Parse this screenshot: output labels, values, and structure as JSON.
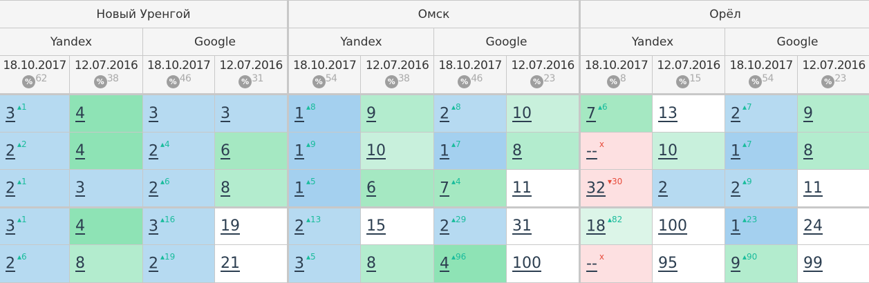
{
  "cities": [
    "Новый Уренгой",
    "Омск",
    "Орёл"
  ],
  "engines": [
    "Yandex",
    "Google",
    "Yandex",
    "Google",
    "Yandex",
    "Google"
  ],
  "columns": [
    {
      "date": "18.10.2017",
      "pct": "62"
    },
    {
      "date": "12.07.2016",
      "pct": "38"
    },
    {
      "date": "18.10.2017",
      "pct": "46"
    },
    {
      "date": "12.07.2016",
      "pct": "31"
    },
    {
      "date": "18.10.2017",
      "pct": "54"
    },
    {
      "date": "12.07.2016",
      "pct": "38"
    },
    {
      "date": "18.10.2017",
      "pct": "46"
    },
    {
      "date": "12.07.2016",
      "pct": "23"
    },
    {
      "date": "18.10.2017",
      "pct": "8"
    },
    {
      "date": "12.07.2016",
      "pct": "15"
    },
    {
      "date": "18.10.2017",
      "pct": "54"
    },
    {
      "date": "12.07.2016",
      "pct": "23"
    }
  ],
  "percent_icon": "%",
  "colors": {
    "blue": "#b6daf1",
    "blue_dark": "#a4d0ef",
    "green_strong": "#8ee3b5",
    "green": "#a5e8c2",
    "green_light": "#b3ecce",
    "green_lighter": "#c8f0dc",
    "green_pale": "#dcf5e8",
    "red_pale": "#fde0e1",
    "up": "#1abc9c",
    "down": "#e74c3c"
  },
  "rows": [
    [
      {
        "v": "3",
        "d": "1",
        "c": "b1"
      },
      {
        "v": "4",
        "c": "g1"
      },
      {
        "v": "3",
        "c": "b1"
      },
      {
        "v": "3",
        "c": "b1"
      },
      {
        "v": "1",
        "d": "8",
        "c": "b2"
      },
      {
        "v": "9",
        "c": "g3"
      },
      {
        "v": "2",
        "d": "8",
        "c": "b1"
      },
      {
        "v": "10",
        "c": "g4"
      },
      {
        "v": "7",
        "d": "6",
        "c": "g2"
      },
      {
        "v": "13",
        "c": "w"
      },
      {
        "v": "2",
        "d": "7",
        "c": "b1"
      },
      {
        "v": "9",
        "c": "g3"
      }
    ],
    [
      {
        "v": "2",
        "d": "2",
        "c": "b1"
      },
      {
        "v": "4",
        "c": "g1"
      },
      {
        "v": "2",
        "d": "4",
        "c": "b1"
      },
      {
        "v": "6",
        "c": "g2"
      },
      {
        "v": "1",
        "d": "9",
        "c": "b2"
      },
      {
        "v": "10",
        "c": "g4"
      },
      {
        "v": "1",
        "d": "7",
        "c": "b2"
      },
      {
        "v": "8",
        "c": "g3"
      },
      {
        "v": "--",
        "x": "x",
        "c": "r"
      },
      {
        "v": "10",
        "c": "g4"
      },
      {
        "v": "1",
        "d": "7",
        "c": "b2"
      },
      {
        "v": "8",
        "c": "g3"
      }
    ],
    [
      {
        "v": "2",
        "d": "1",
        "c": "b1"
      },
      {
        "v": "3",
        "c": "b1"
      },
      {
        "v": "2",
        "d": "6",
        "c": "b1"
      },
      {
        "v": "8",
        "c": "g3"
      },
      {
        "v": "1",
        "d": "5",
        "c": "b2"
      },
      {
        "v": "6",
        "c": "g2"
      },
      {
        "v": "7",
        "d": "4",
        "c": "g2"
      },
      {
        "v": "11",
        "c": "w"
      },
      {
        "v": "32",
        "dn": "30",
        "c": "r"
      },
      {
        "v": "2",
        "c": "b1"
      },
      {
        "v": "2",
        "d": "9",
        "c": "b1"
      },
      {
        "v": "11",
        "c": "w"
      }
    ],
    [
      {
        "v": "3",
        "d": "1",
        "c": "b1"
      },
      {
        "v": "4",
        "c": "g1"
      },
      {
        "v": "3",
        "d": "16",
        "c": "b1"
      },
      {
        "v": "19",
        "c": "w"
      },
      {
        "v": "2",
        "d": "13",
        "c": "b1"
      },
      {
        "v": "15",
        "c": "w"
      },
      {
        "v": "2",
        "d": "29",
        "c": "b1"
      },
      {
        "v": "31",
        "c": "w"
      },
      {
        "v": "18",
        "d": "82",
        "c": "g5"
      },
      {
        "v": "100",
        "c": "w"
      },
      {
        "v": "1",
        "d": "23",
        "c": "b2"
      },
      {
        "v": "24",
        "c": "w"
      }
    ],
    [
      {
        "v": "2",
        "d": "6",
        "c": "b1"
      },
      {
        "v": "8",
        "c": "g3"
      },
      {
        "v": "2",
        "d": "19",
        "c": "b1"
      },
      {
        "v": "21",
        "c": "w"
      },
      {
        "v": "3",
        "d": "5",
        "c": "b1"
      },
      {
        "v": "8",
        "c": "g3"
      },
      {
        "v": "4",
        "d": "96",
        "c": "g1"
      },
      {
        "v": "100",
        "c": "w"
      },
      {
        "v": "--",
        "x": "x",
        "c": "r"
      },
      {
        "v": "95",
        "c": "w"
      },
      {
        "v": "9",
        "d": "90",
        "c": "g3"
      },
      {
        "v": "99",
        "c": "w"
      }
    ]
  ]
}
